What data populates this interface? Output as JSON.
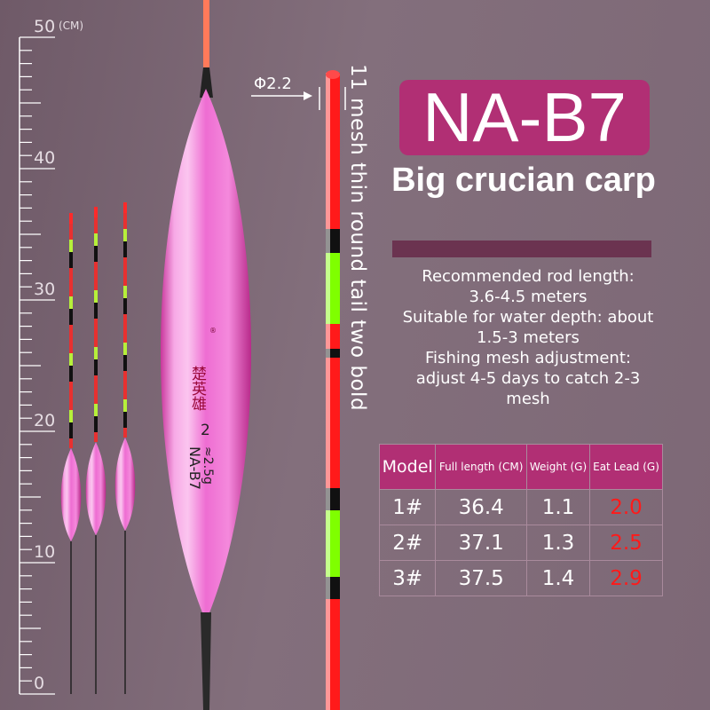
{
  "ruler": {
    "unit": "(CM)",
    "tick_labels": [
      "50",
      "40",
      "30",
      "20",
      "10",
      "0"
    ]
  },
  "float_markings": {
    "brand": "楚英雄",
    "registered": "®",
    "size": "2",
    "weight": "≈2.5g",
    "model": "NA-B7"
  },
  "tip_annotation": {
    "diameter": "Φ2.2",
    "description": "11 mesh thin round tail two bold"
  },
  "product": {
    "model": "NA-B7",
    "subtitle": "Big crucian carp"
  },
  "specs": [
    "Recommended rod length:",
    "3.6-4.5 meters",
    "Suitable for water depth: about",
    "1.5-3 meters",
    "Fishing mesh adjustment:",
    "adjust 4-5 days to catch 2-3",
    "mesh"
  ],
  "table": {
    "headers": [
      "Model",
      "Full length (CM)",
      "Weight (G)",
      "Eat Lead (G)"
    ],
    "rows": [
      [
        "1#",
        "36.4",
        "1.1",
        "2.0"
      ],
      [
        "2#",
        "37.1",
        "1.3",
        "2.5"
      ],
      [
        "3#",
        "37.5",
        "1.4",
        "2.9"
      ]
    ]
  },
  "colors": {
    "accent": "#b12f74",
    "lead_value": "#ff1a1a",
    "float_body": "#f06ad0",
    "background": "#7d6876"
  }
}
